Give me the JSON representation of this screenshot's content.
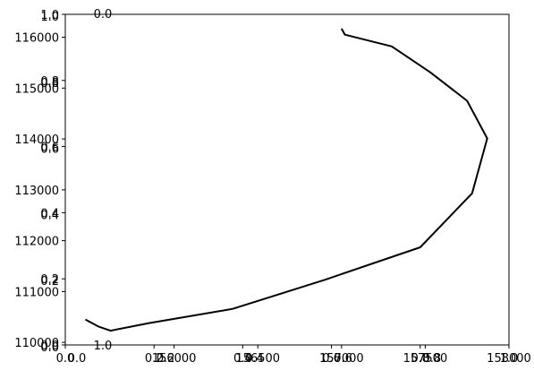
{
  "chart_data": {
    "type": "line",
    "title": "",
    "xlabel": "",
    "ylabel": "",
    "grid": false,
    "legend": "none",
    "line_color": "#000000",
    "background": "#ffffff",
    "axes": {
      "frame_x": {
        "ticks": [
          0.0,
          0.2,
          0.4,
          0.6,
          0.8,
          1.0
        ],
        "labels": [
          "0.0",
          "0.2",
          "0.4",
          "0.6",
          "0.8",
          "1.0"
        ]
      },
      "frame_y": {
        "ticks": [
          0.0,
          0.2,
          0.4,
          0.6,
          0.8,
          1.0
        ],
        "labels": [
          "0.0",
          "0.2",
          "0.4",
          "0.6",
          "0.8",
          "1.0"
        ]
      },
      "frame_x_inner": {
        "ticks": [
          0.0,
          0.2,
          0.4,
          0.6,
          0.8,
          1.0
        ],
        "labels": [
          "0.0",
          "0.2",
          "0.4",
          "0.6",
          "0.8",
          "1.0"
        ]
      },
      "frame_y_inner": {
        "ticks": [
          0.0,
          0.2,
          0.4,
          0.6,
          0.8,
          1.0
        ],
        "labels": [
          "0.0",
          "0.2",
          "0.4",
          "0.6",
          "0.8",
          "1.0"
        ]
      },
      "bottom_overlap_labels": [
        "0.0",
        "1.0"
      ],
      "data_x": {
        "range": [
          155350,
          158000
        ],
        "ticks": [
          156000,
          156500,
          157000,
          157500,
          158000
        ],
        "labels": [
          "156000",
          "156500",
          "157000",
          "157500",
          "158000"
        ]
      },
      "data_y": {
        "range": [
          109950,
          116450
        ],
        "ticks": [
          110000,
          111000,
          112000,
          113000,
          114000,
          115000,
          116000
        ],
        "labels": [
          "110000",
          "111000",
          "112000",
          "113000",
          "114000",
          "115000",
          "116000"
        ]
      }
    },
    "series": [
      {
        "x": [
          157000,
          157020,
          157300,
          157530,
          157750,
          157870,
          157780,
          157470,
          156900,
          156350,
          155850,
          155620,
          155550,
          155470
        ],
        "y": [
          116170,
          116050,
          115820,
          115310,
          114750,
          114010,
          112930,
          111870,
          111230,
          110660,
          110380,
          110230,
          110310,
          110450
        ]
      }
    ]
  }
}
